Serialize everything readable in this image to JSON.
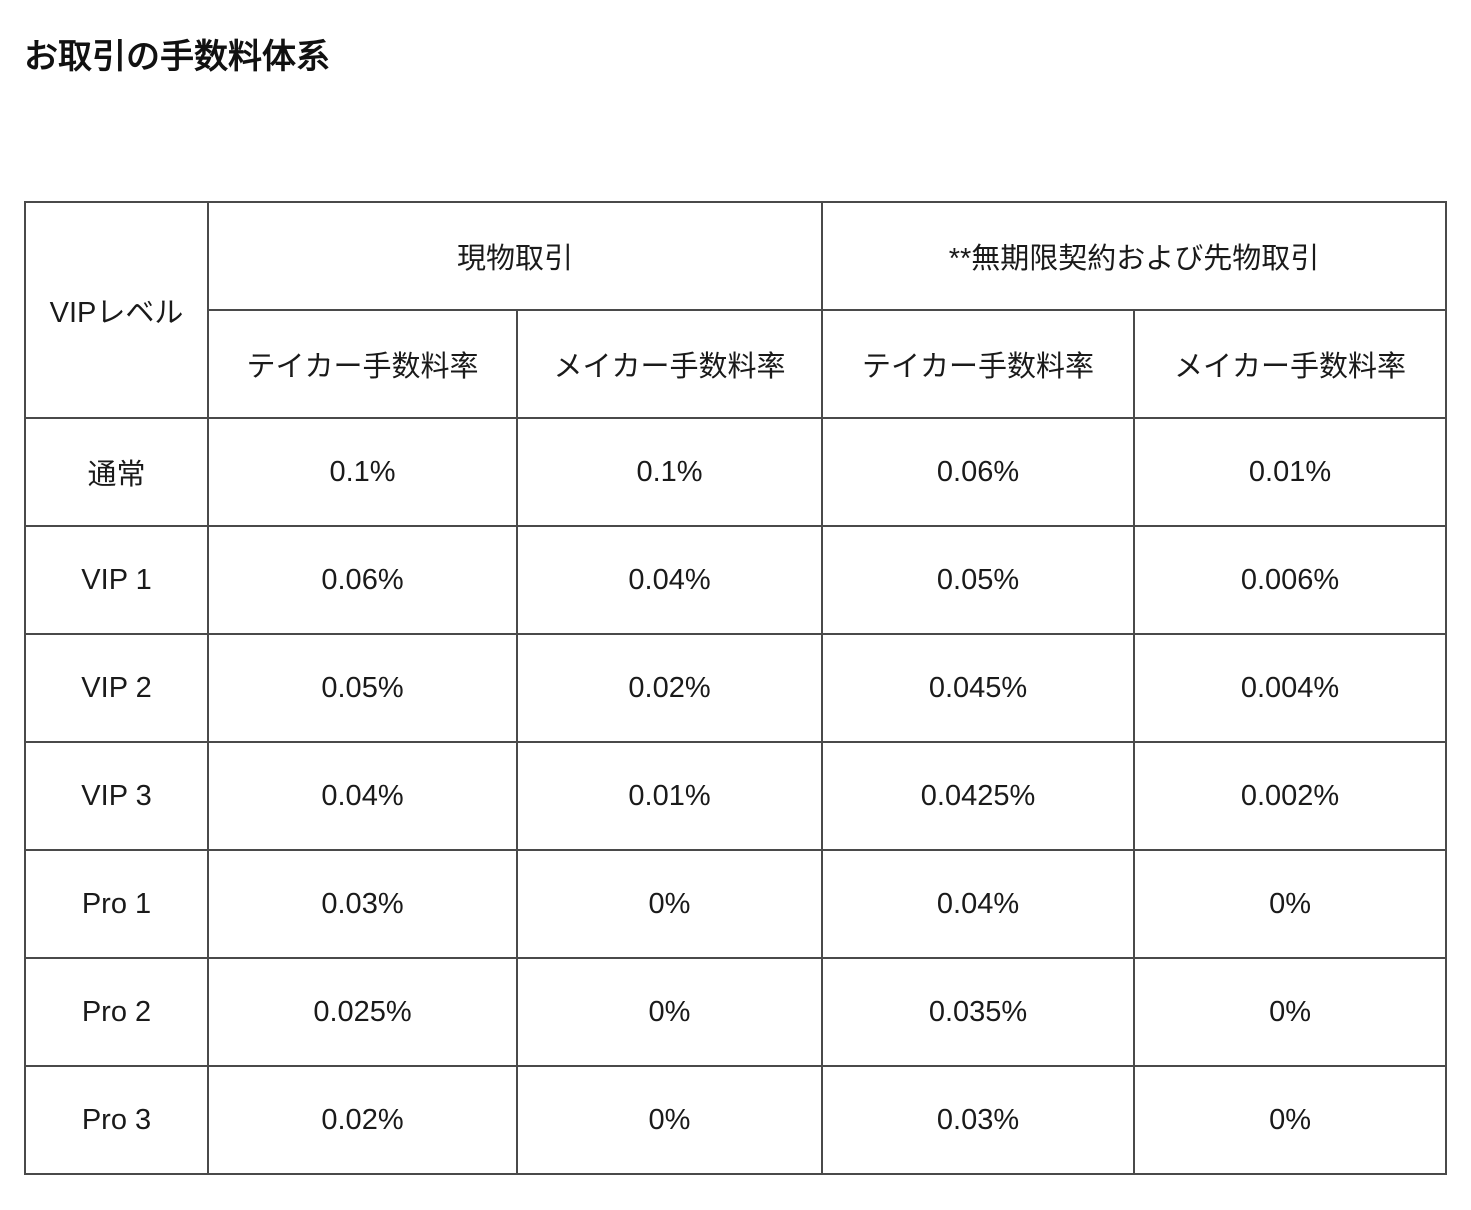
{
  "page": {
    "title": "お取引の手数料体系"
  },
  "table": {
    "header": {
      "level_label": "VIPレベル",
      "groups": [
        {
          "label": "現物取引"
        },
        {
          "label": "**無期限契約および先物取引"
        }
      ],
      "subheaders": [
        {
          "label": "テイカー手数料率"
        },
        {
          "label": "メイカー手数料率"
        },
        {
          "label": "テイカー手数料率"
        },
        {
          "label": "メイカー手数料率"
        }
      ]
    },
    "rows": [
      {
        "level": "通常",
        "spot_taker": "0.1%",
        "spot_maker": "0.1%",
        "futures_taker": "0.06%",
        "futures_maker": "0.01%"
      },
      {
        "level": "VIP 1",
        "spot_taker": "0.06%",
        "spot_maker": "0.04%",
        "futures_taker": "0.05%",
        "futures_maker": "0.006%"
      },
      {
        "level": "VIP 2",
        "spot_taker": "0.05%",
        "spot_maker": "0.02%",
        "futures_taker": "0.045%",
        "futures_maker": "0.004%"
      },
      {
        "level": "VIP 3",
        "spot_taker": "0.04%",
        "spot_maker": "0.01%",
        "futures_taker": "0.0425%",
        "futures_maker": "0.002%"
      },
      {
        "level": "Pro 1",
        "spot_taker": "0.03%",
        "spot_maker": "0%",
        "futures_taker": "0.04%",
        "futures_maker": "0%"
      },
      {
        "level": "Pro 2",
        "spot_taker": "0.025%",
        "spot_maker": "0%",
        "futures_taker": "0.035%",
        "futures_maker": "0%"
      },
      {
        "level": "Pro 3",
        "spot_taker": "0.02%",
        "spot_maker": "0%",
        "futures_taker": "0.03%",
        "futures_maker": "0%"
      }
    ]
  }
}
